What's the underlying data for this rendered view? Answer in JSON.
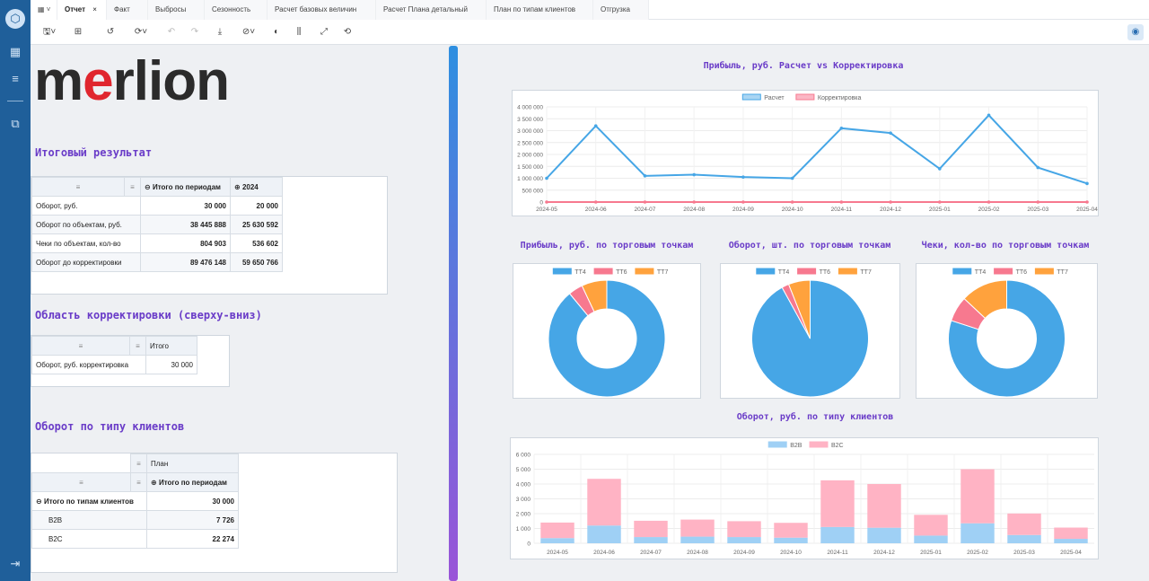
{
  "tabs": [
    {
      "label": "Отчет",
      "active": true
    },
    {
      "label": "Факт"
    },
    {
      "label": "Выбросы"
    },
    {
      "label": "Сезонность"
    },
    {
      "label": "Расчет базовых величин"
    },
    {
      "label": "Расчет Плана детальный"
    },
    {
      "label": "План по типам клиентов"
    },
    {
      "label": "Отгрузка"
    }
  ],
  "brand": {
    "part1": "m",
    "part2": "e",
    "part3": "rlion"
  },
  "section1": {
    "title": "Итоговый результат",
    "col_total": "Итого по периодам",
    "col_year": "2024",
    "rows": [
      {
        "label": "Оборот, руб.",
        "total": "30 000",
        "year": "20 000"
      },
      {
        "label": "Оборот по объектам, руб.",
        "total": "38 445 888",
        "year": "25 630 592"
      },
      {
        "label": "Чеки по объектам, кол-во",
        "total": "804 903",
        "year": "536 602"
      },
      {
        "label": "Оборот до корректировки",
        "total": "89 476 148",
        "year": "59 650 766"
      }
    ]
  },
  "section2": {
    "title": "Область корректировки (сверху-вниз)",
    "col": "Итого",
    "row_label": "Оборот, руб. корректировка",
    "row_value": "30 000"
  },
  "section3": {
    "title": "Оборот по типу клиентов",
    "col_plan": "План",
    "col_total": "Итого по периодам",
    "group_label": "Итого по типам клиентов",
    "group_value": "30 000",
    "rows": [
      {
        "label": "B2B",
        "value": "7 726"
      },
      {
        "label": "B2C",
        "value": "22 274"
      }
    ]
  },
  "colors": {
    "blue": "#46a6e6",
    "pink": "#f7798f",
    "orange": "#ffa23d",
    "lightblue": "#9fd0f5",
    "lightpink": "#ffb3c4",
    "accent": "#6a3cc8"
  },
  "chart_data": [
    {
      "type": "line",
      "title": "Прибыль, руб. Расчет vs Корректировка",
      "x": [
        "2024-05",
        "2024-06",
        "2024-07",
        "2024-08",
        "2024-09",
        "2024-10",
        "2024-11",
        "2024-12",
        "2025-01",
        "2025-02",
        "2025-03",
        "2025-04"
      ],
      "series": [
        {
          "name": "Расчет",
          "values": [
            1000000,
            3200000,
            1100000,
            1150000,
            1050000,
            1000000,
            3100000,
            2900000,
            1400000,
            3650000,
            1450000,
            780000
          ]
        },
        {
          "name": "Корректировка",
          "values": [
            0,
            0,
            0,
            0,
            0,
            0,
            0,
            0,
            0,
            0,
            0,
            0
          ]
        }
      ],
      "yticks": [
        "0",
        "500 000",
        "1 000 000",
        "1 500 000",
        "2 000 000",
        "2 500 000",
        "3 000 000",
        "3 500 000",
        "4 000 000"
      ],
      "ylim": [
        0,
        4000000
      ]
    },
    {
      "type": "pie",
      "title": "Прибыль, руб. по торговым точкам",
      "labels": [
        "ТТ4",
        "ТТ6",
        "ТТ7"
      ],
      "values": [
        89,
        4,
        7
      ]
    },
    {
      "type": "pie",
      "title": "Оборот, шт. по торговым точкам",
      "labels": [
        "ТТ4",
        "ТТ6",
        "ТТ7"
      ],
      "values": [
        92,
        2,
        6
      ]
    },
    {
      "type": "pie",
      "title": "Чеки, кол-во по торговым точкам",
      "labels": [
        "ТТ4",
        "ТТ6",
        "ТТ7"
      ],
      "values": [
        80,
        7,
        13
      ]
    },
    {
      "type": "bar",
      "title": "Оборот, руб. по типу клиентов",
      "categories": [
        "2024-05",
        "2024-06",
        "2024-07",
        "2024-08",
        "2024-09",
        "2024-10",
        "2024-11",
        "2024-12",
        "2025-01",
        "2025-02",
        "2025-03",
        "2025-04"
      ],
      "series": [
        {
          "name": "B2B",
          "values": [
            350,
            1200,
            420,
            450,
            420,
            380,
            1100,
            1050,
            520,
            1350,
            560,
            300
          ]
        },
        {
          "name": "B2C",
          "values": [
            1050,
            3150,
            1100,
            1150,
            1070,
            1000,
            3150,
            2950,
            1400,
            3650,
            1450,
            760
          ]
        }
      ],
      "yticks": [
        "0",
        "1 000",
        "2 000",
        "3 000",
        "4 000",
        "5 000",
        "6 000"
      ],
      "ylim": [
        0,
        6000
      ],
      "stacked": true
    }
  ]
}
